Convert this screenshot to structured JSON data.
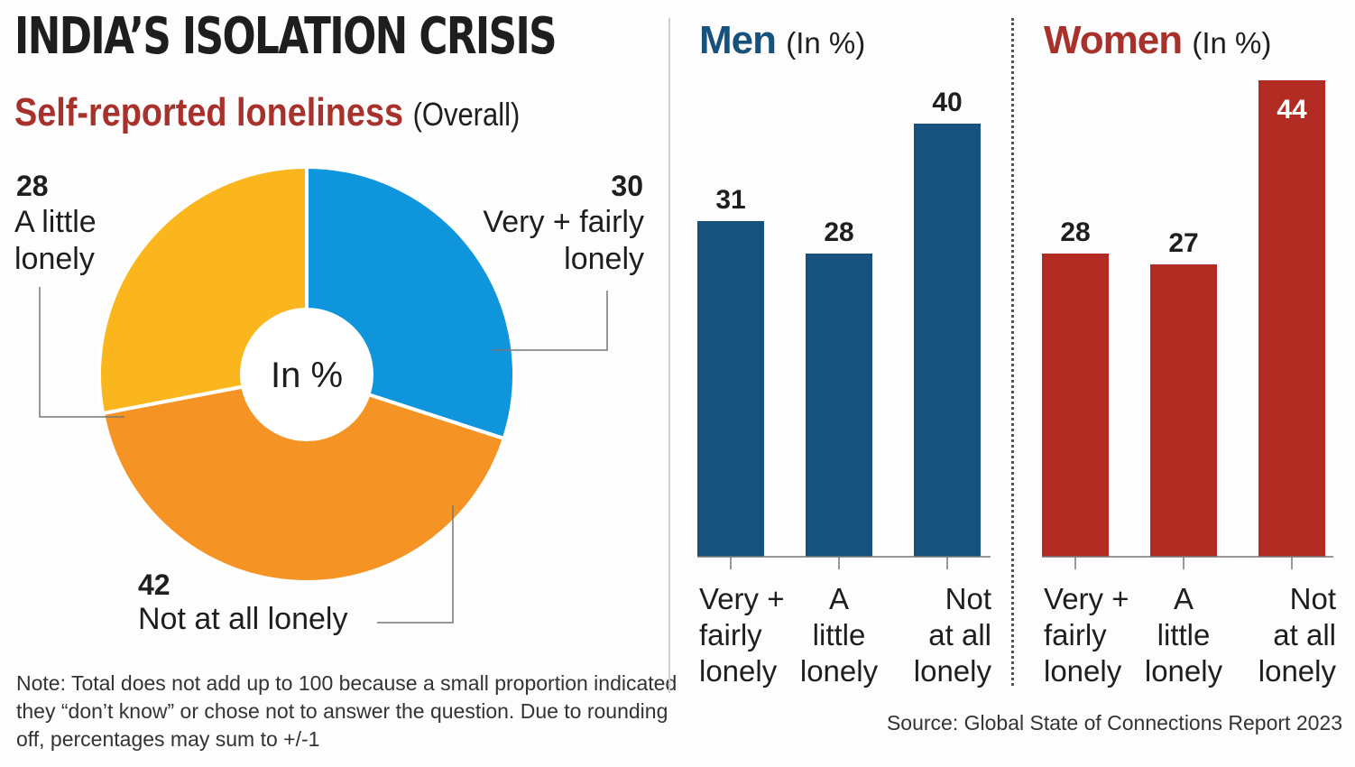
{
  "title": "INDIA’S ISOLATION CRISIS",
  "subtitle": "Self-reported loneliness",
  "subtitle_note": "(Overall)",
  "note": "Note: Total does not add up to 100 because a small proportion indicated they “don’t know” or chose not to answer the question. Due to rounding off, percentages may sum to +/-1",
  "source": "Source: Global State of Connections Report 2023",
  "colors": {
    "very_fairly": "#0f95dc",
    "not_at_all": "#f59424",
    "a_little": "#fbb61d",
    "men": "#17527e",
    "women": "#b32c24",
    "title_red": "#a8322b"
  },
  "chart_data": [
    {
      "type": "pie",
      "title": "Self-reported loneliness (Overall)",
      "center_label": "In %",
      "slices": [
        {
          "label": "Very + fairly lonely",
          "value": 30,
          "value_label": "30",
          "label_lines": [
            "Very + fairly",
            "lonely"
          ]
        },
        {
          "label": "Not at all lonely",
          "value": 42,
          "value_label": "42",
          "label_lines": [
            "Not at all lonely"
          ]
        },
        {
          "label": "A little lonely",
          "value": 28,
          "value_label": "28",
          "label_lines": [
            "A little",
            "lonely"
          ]
        }
      ]
    },
    {
      "type": "bar",
      "title": "Men",
      "unit": "(In %)",
      "categories": [
        [
          "Very +",
          "fairly",
          "lonely"
        ],
        [
          "A",
          "little",
          "lonely"
        ],
        [
          "Not",
          "at all",
          "lonely"
        ]
      ],
      "values": [
        31,
        28,
        40
      ],
      "ylim": [
        0,
        46
      ]
    },
    {
      "type": "bar",
      "title": "Women",
      "unit": "(In %)",
      "categories": [
        [
          "Very +",
          "fairly",
          "lonely"
        ],
        [
          "A",
          "little",
          "lonely"
        ],
        [
          "Not",
          "at all",
          "lonely"
        ]
      ],
      "values": [
        28,
        27,
        44
      ],
      "ylim": [
        0,
        46
      ]
    }
  ]
}
